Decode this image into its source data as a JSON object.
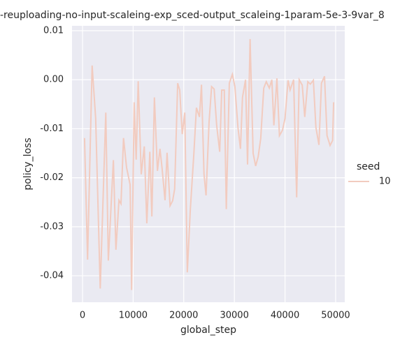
{
  "chart_data": {
    "type": "line",
    "title": "-reuploading-no-input-scaleing-exp_sced-output_scaleing-1param-5e-3-9var_8",
    "x_label": "global_step",
    "y_label": "policy_loss",
    "legend_title": "seed",
    "x": [
      400,
      1000,
      1900,
      2600,
      3500,
      4600,
      5100,
      6100,
      6600,
      7200,
      7600,
      8100,
      8700,
      9400,
      9700,
      10200,
      10600,
      11000,
      11600,
      12200,
      12700,
      13300,
      13700,
      14200,
      14800,
      15300,
      15700,
      16300,
      16700,
      17300,
      17800,
      18200,
      18800,
      19200,
      19700,
      20200,
      20700,
      21300,
      22000,
      22500,
      23100,
      23500,
      24000,
      24400,
      25000,
      25500,
      26000,
      26500,
      27100,
      27500,
      28000,
      28400,
      29000,
      29600,
      30100,
      30700,
      31200,
      31600,
      32200,
      32600,
      33100,
      33700,
      34200,
      34700,
      35200,
      35800,
      36300,
      36900,
      37400,
      37800,
      38400,
      38900,
      39500,
      40000,
      40600,
      41000,
      41700,
      42300,
      42800,
      43400,
      43900,
      44500,
      45000,
      45600,
      46100,
      46700,
      47200,
      47800,
      48300,
      48900,
      49400,
      49600
    ],
    "series": [
      {
        "name": "10",
        "color": "#f2cbbf",
        "values": [
          -0.0119,
          -0.0367,
          0.0029,
          -0.0079,
          -0.0426,
          -0.0067,
          -0.0369,
          -0.0164,
          -0.0347,
          -0.0246,
          -0.0253,
          -0.0119,
          -0.0179,
          -0.0214,
          -0.0429,
          -0.0046,
          -0.0163,
          -0.0003,
          -0.0193,
          -0.0136,
          -0.0293,
          -0.0147,
          -0.0279,
          -0.0036,
          -0.0186,
          -0.0141,
          -0.0179,
          -0.0246,
          -0.0149,
          -0.0257,
          -0.0247,
          -0.0223,
          -0.0007,
          -0.0021,
          -0.0111,
          -0.0067,
          -0.0393,
          -0.0264,
          -0.015,
          -0.0057,
          -0.0076,
          -0.001,
          -0.0193,
          -0.0236,
          -0.0086,
          -0.0014,
          -0.0019,
          -0.0093,
          -0.0147,
          -0.0021,
          -0.0021,
          -0.0264,
          -0.0007,
          0.0011,
          -0.0014,
          -0.0097,
          -0.0141,
          -0.0036,
          0,
          -0.0173,
          0.0083,
          -0.015,
          -0.0176,
          -0.0157,
          -0.012,
          -0.0017,
          -0.0004,
          -0.0017,
          0,
          -0.0093,
          0.0003,
          -0.0114,
          -0.0103,
          -0.0079,
          -0.0001,
          -0.0021,
          0,
          -0.024,
          0,
          -0.0011,
          -0.0076,
          -0.0004,
          -0.0009,
          -0.0001,
          -0.0097,
          -0.0133,
          -0.0007,
          0.0007,
          -0.0114,
          -0.0134,
          -0.0124,
          -0.0046
        ]
      }
    ],
    "xlim": [
      -2070,
      51800
    ],
    "ylim": [
      -0.0454,
      0.011
    ],
    "xticks": [
      0,
      10000,
      20000,
      30000,
      40000,
      50000
    ],
    "yticks": [
      -0.04,
      -0.03,
      -0.02,
      -0.01,
      {
        "value": 0,
        "label": "0.00"
      },
      0.01
    ],
    "grid": true
  }
}
